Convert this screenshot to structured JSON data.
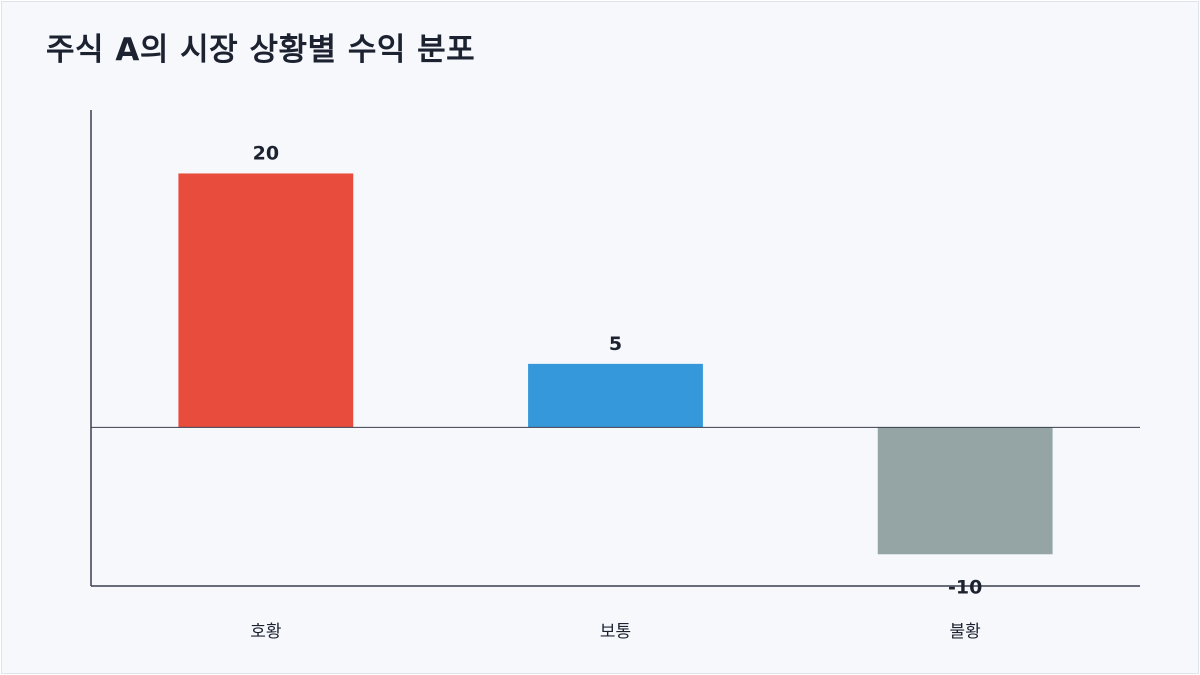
{
  "chart_data": {
    "type": "bar",
    "title": "주식 A의 시장 상황별 수익 분포",
    "categories": [
      "호황",
      "보통",
      "불황"
    ],
    "values": [
      20,
      5,
      -10
    ],
    "colors": [
      "#e74c3c",
      "#3498db",
      "#95a5a6"
    ],
    "ylim": [
      -12.5,
      25
    ],
    "grid": false,
    "legend": "none",
    "xlabel": "",
    "ylabel": ""
  }
}
